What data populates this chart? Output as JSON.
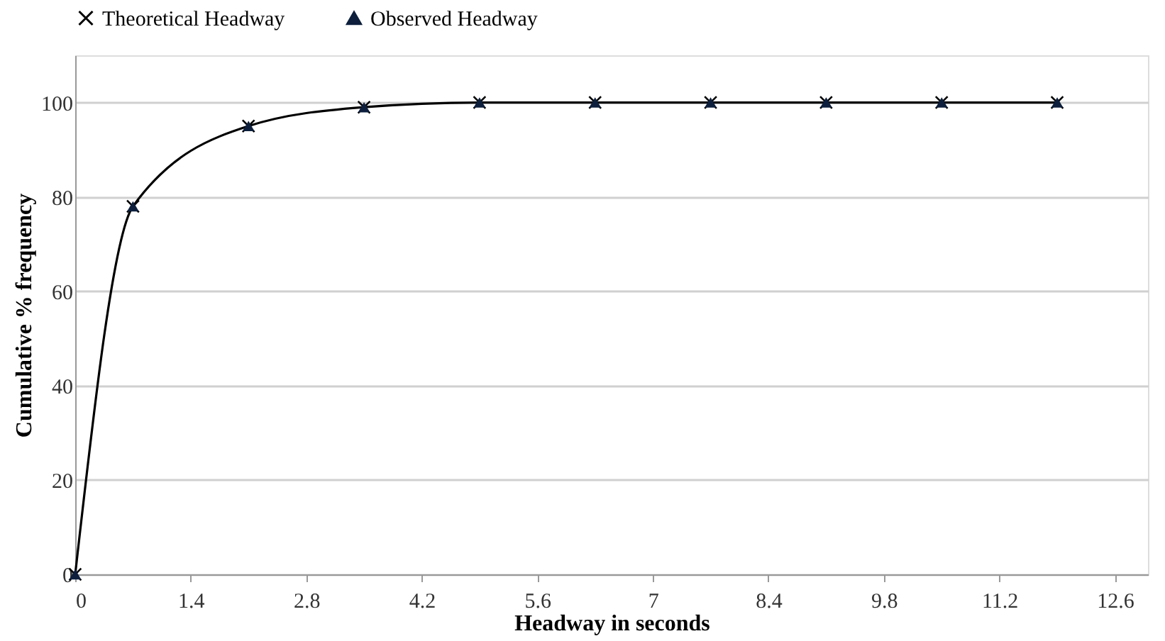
{
  "chart_data": {
    "type": "line",
    "xlabel": "Headway in seconds",
    "ylabel": "Cumulative % frequency",
    "x": [
      0,
      0.7,
      2.1,
      3.5,
      4.9,
      6.3,
      7.7,
      9.1,
      10.5,
      11.9
    ],
    "xlim": [
      0,
      13
    ],
    "xticks": [
      0,
      1.4,
      2.8,
      4.2,
      5.6,
      7,
      8.4,
      9.8,
      11.2,
      12.6
    ],
    "ylim": [
      0,
      110
    ],
    "yticks": [
      0,
      20,
      40,
      60,
      80,
      100
    ],
    "grid": "y",
    "legend": "top",
    "series": [
      {
        "name": "Theoretical Headway",
        "color": "#000000",
        "marker": "cross",
        "values": [
          0,
          78,
          95,
          99,
          100,
          100,
          100,
          100,
          100,
          100
        ]
      },
      {
        "name": "Observed Headway",
        "type": "scatter",
        "color": "#0d1f3c",
        "marker": "triangle",
        "values": [
          0,
          78,
          95,
          99,
          100,
          100,
          100,
          100,
          100,
          100
        ]
      }
    ]
  }
}
